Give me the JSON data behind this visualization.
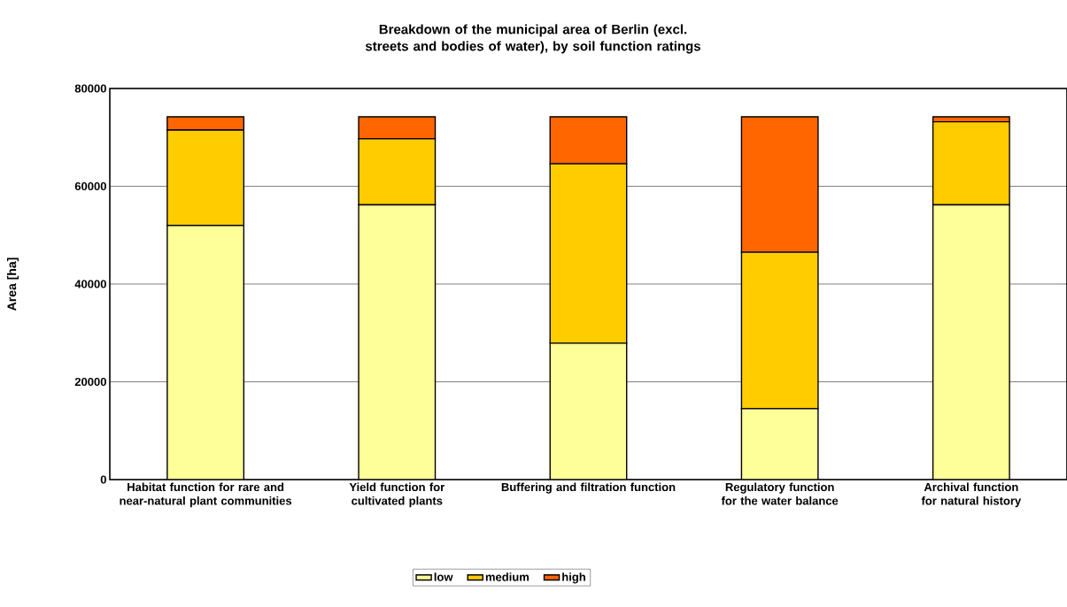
{
  "chart_data": {
    "type": "bar",
    "stacked": true,
    "title": "Breakdown of the municipal area of Berlin (excl. streets and bodies of water), by soil function ratings",
    "ylabel": "Area [ha]",
    "categories": [
      "Habitat function for rare and near-natural plant communities",
      "Yield function for cultivated plants",
      "Buffering and filtration function",
      "Regulatory function for the water balance",
      "Archival function for natural history"
    ],
    "series": [
      {
        "name": "low",
        "color": "#ffff99",
        "values": [
          52000,
          56200,
          27900,
          14500,
          56200
        ]
      },
      {
        "name": "medium",
        "color": "#ffcc00",
        "values": [
          19500,
          13500,
          36700,
          32000,
          17000
        ]
      },
      {
        "name": "high",
        "color": "#ff6600",
        "values": [
          2700,
          4500,
          9600,
          27700,
          1000
        ]
      }
    ],
    "ylim": [
      0,
      80000
    ],
    "yticks": [
      0,
      20000,
      40000,
      60000,
      80000
    ],
    "grid": "y",
    "legend": "bottom"
  }
}
